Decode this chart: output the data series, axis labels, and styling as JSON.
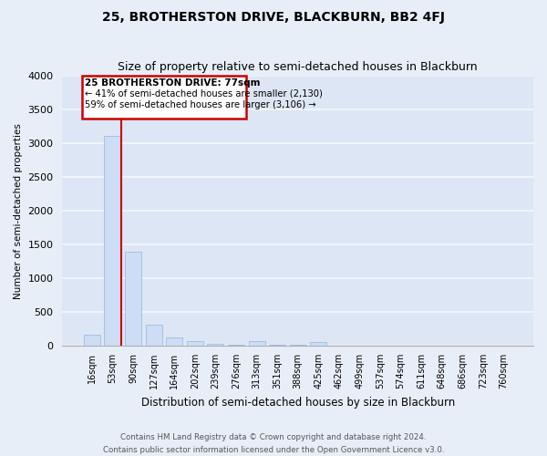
{
  "title": "25, BROTHERSTON DRIVE, BLACKBURN, BB2 4FJ",
  "subtitle": "Size of property relative to semi-detached houses in Blackburn",
  "xlabel": "Distribution of semi-detached houses by size in Blackburn",
  "ylabel": "Number of semi-detached properties",
  "footer_line1": "Contains HM Land Registry data © Crown copyright and database right 2024.",
  "footer_line2": "Contains public sector information licensed under the Open Government Licence v3.0.",
  "categories": [
    "16sqm",
    "53sqm",
    "90sqm",
    "127sqm",
    "164sqm",
    "202sqm",
    "239sqm",
    "276sqm",
    "313sqm",
    "351sqm",
    "388sqm",
    "425sqm",
    "462sqm",
    "499sqm",
    "537sqm",
    "574sqm",
    "611sqm",
    "648sqm",
    "686sqm",
    "723sqm",
    "760sqm"
  ],
  "values": [
    160,
    3120,
    1390,
    310,
    130,
    70,
    25,
    15,
    70,
    10,
    10,
    50,
    4,
    4,
    4,
    4,
    4,
    4,
    4,
    4,
    4
  ],
  "bar_color": "#ccddf5",
  "bar_edge_color": "#a0bedd",
  "annotation_box_color": "#cc0000",
  "annotation_bg": "#ffffff",
  "property_line_color": "#cc0000",
  "annotation_title": "25 BROTHERSTON DRIVE: 77sqm",
  "annotation_line1": "← 41% of semi-detached houses are smaller (2,130)",
  "annotation_line2": "59% of semi-detached houses are larger (3,106) →",
  "property_bin_index": 1,
  "ylim": [
    0,
    4000
  ],
  "yticks": [
    0,
    500,
    1000,
    1500,
    2000,
    2500,
    3000,
    3500,
    4000
  ],
  "background_color": "#e8eef8",
  "plot_bg_color": "#dde6f5",
  "grid_color": "#f5f7fc",
  "title_fontsize": 10,
  "subtitle_fontsize": 9
}
